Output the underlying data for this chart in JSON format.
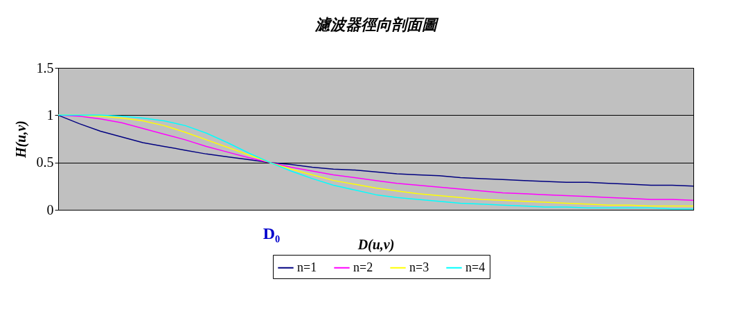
{
  "chart_data": {
    "type": "line",
    "title": "濾波器徑向剖面圖",
    "xlabel": "D(u,v)",
    "ylabel": "H(u,v)",
    "categories": [
      null,
      null,
      null,
      null,
      null,
      null,
      null,
      null,
      null,
      null,
      null,
      null,
      null,
      null,
      null,
      null,
      null,
      null,
      null,
      null,
      null,
      null,
      null,
      null,
      null,
      null,
      null,
      null,
      null,
      null,
      null
    ],
    "series": [
      {
        "name": "n=1",
        "color": "#000080",
        "values": [
          1.0,
          0.91,
          0.83,
          0.77,
          0.71,
          0.67,
          0.63,
          0.59,
          0.56,
          0.53,
          0.5,
          0.48,
          0.45,
          0.43,
          0.42,
          0.4,
          0.38,
          0.37,
          0.36,
          0.34,
          0.33,
          0.32,
          0.31,
          0.3,
          0.29,
          0.29,
          0.28,
          0.27,
          0.26,
          0.26,
          0.25
        ]
      },
      {
        "name": "n=2",
        "color": "#ff00ff",
        "values": [
          1.0,
          0.99,
          0.96,
          0.92,
          0.86,
          0.8,
          0.74,
          0.67,
          0.61,
          0.55,
          0.5,
          0.45,
          0.41,
          0.37,
          0.34,
          0.31,
          0.28,
          0.26,
          0.24,
          0.22,
          0.2,
          0.18,
          0.17,
          0.16,
          0.15,
          0.14,
          0.13,
          0.12,
          0.11,
          0.11,
          0.1
        ]
      },
      {
        "name": "n=3",
        "color": "#ffff00",
        "values": [
          1.0,
          1.0,
          0.99,
          0.97,
          0.94,
          0.89,
          0.82,
          0.74,
          0.66,
          0.58,
          0.5,
          0.43,
          0.37,
          0.31,
          0.27,
          0.23,
          0.2,
          0.17,
          0.15,
          0.13,
          0.11,
          0.1,
          0.09,
          0.08,
          0.07,
          0.06,
          0.05,
          0.05,
          0.04,
          0.04,
          0.04
        ]
      },
      {
        "name": "n=4",
        "color": "#00ffff",
        "values": [
          1.0,
          1.0,
          1.0,
          0.99,
          0.97,
          0.94,
          0.89,
          0.81,
          0.71,
          0.6,
          0.5,
          0.41,
          0.33,
          0.26,
          0.21,
          0.16,
          0.13,
          0.11,
          0.09,
          0.07,
          0.06,
          0.05,
          0.04,
          0.03,
          0.03,
          0.02,
          0.02,
          0.02,
          0.02,
          0.01,
          0.01
        ]
      }
    ],
    "ylim": [
      0,
      1.5
    ],
    "yticks": [
      0,
      0.5,
      1,
      1.5
    ],
    "grid": "y",
    "legend": "bottom",
    "annotations": [
      "D₀"
    ]
  }
}
